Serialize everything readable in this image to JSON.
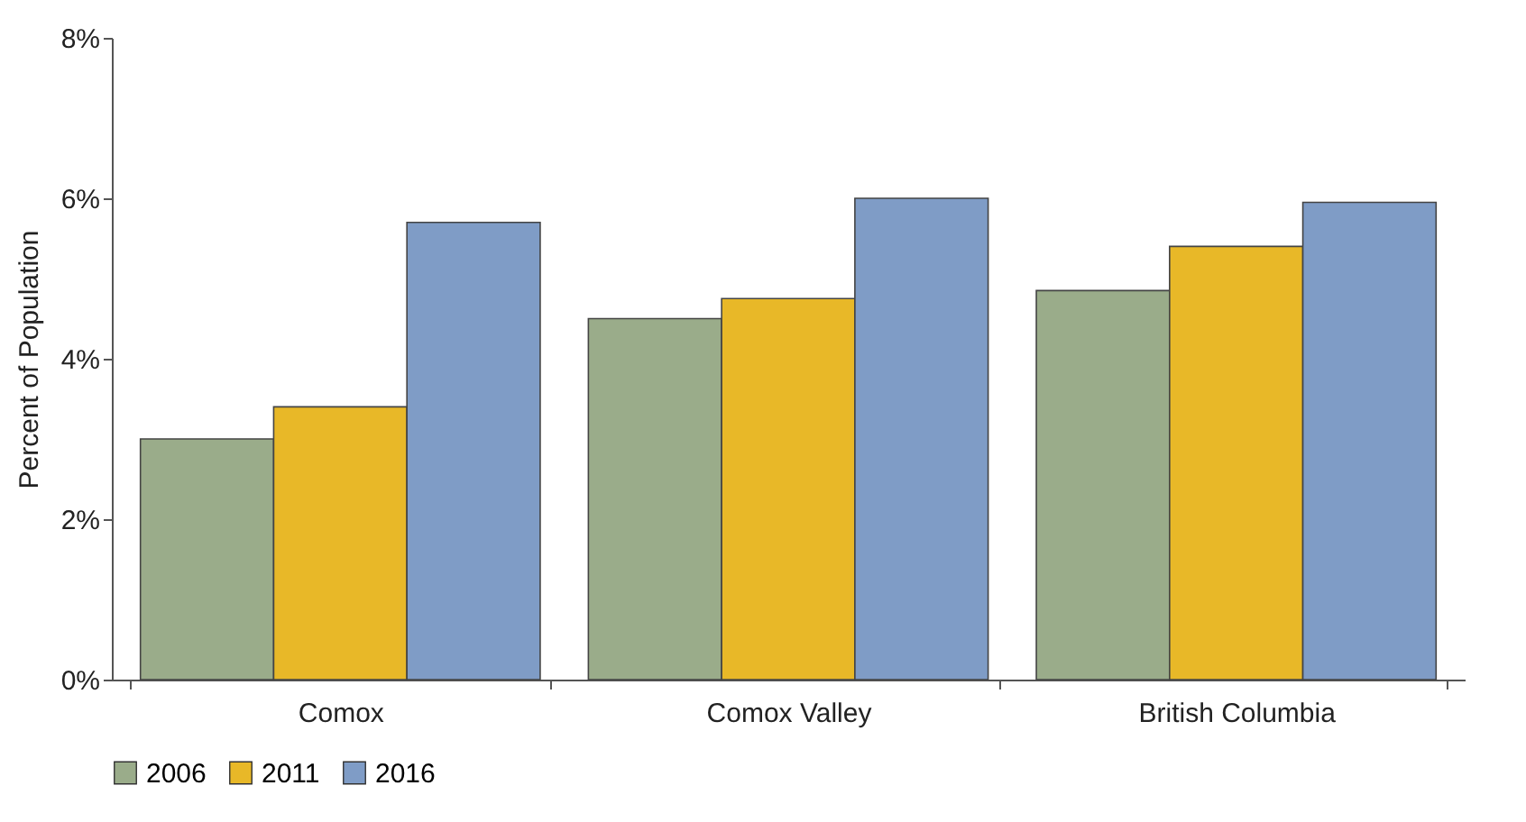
{
  "chart_data": {
    "type": "bar",
    "ylabel": "Percent of Population",
    "categories": [
      "Comox",
      "Comox Valley",
      "British Columbia"
    ],
    "series": [
      {
        "name": "2006",
        "color": "#9aac8a",
        "values": [
          3.0,
          4.5,
          4.85
        ]
      },
      {
        "name": "2011",
        "color": "#e8b828",
        "values": [
          3.4,
          4.75,
          5.4
        ]
      },
      {
        "name": "2016",
        "color": "#7f9cc6",
        "values": [
          5.7,
          6.0,
          5.95
        ]
      }
    ],
    "ylim": [
      0,
      8
    ],
    "yticks": [
      {
        "value": 0,
        "label": "0%"
      },
      {
        "value": 2,
        "label": "2%"
      },
      {
        "value": 4,
        "label": "4%"
      },
      {
        "value": 6,
        "label": "6%"
      },
      {
        "value": 8,
        "label": "8%"
      }
    ],
    "grid": false,
    "legend": "bottom"
  }
}
